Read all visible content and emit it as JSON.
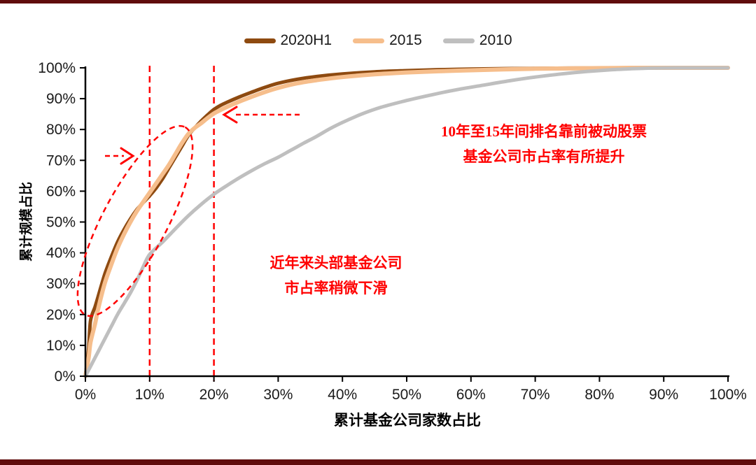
{
  "page": {
    "accent_bar_color": "#600C0C",
    "background": "#FFFFFF"
  },
  "chart_data": {
    "type": "line",
    "title": "",
    "xlabel": "累计基金公司家数占比",
    "ylabel": "累计规模占比",
    "xlim": [
      0,
      100
    ],
    "ylim": [
      0,
      100
    ],
    "grid": false,
    "legend_position": "top-center",
    "x_ticks": [
      "0%",
      "10%",
      "20%",
      "30%",
      "40%",
      "50%",
      "60%",
      "70%",
      "80%",
      "90%",
      "100%"
    ],
    "y_ticks": [
      "0%",
      "10%",
      "20%",
      "30%",
      "40%",
      "50%",
      "60%",
      "70%",
      "80%",
      "90%",
      "100%"
    ],
    "axis_color": "#000000",
    "series": [
      {
        "name": "2020H1",
        "color": "#8E4A10",
        "width": 5,
        "points": [
          [
            0,
            0
          ],
          [
            0.5,
            9
          ],
          [
            0.8,
            18
          ],
          [
            1.5,
            22.5
          ],
          [
            2,
            26
          ],
          [
            3,
            33
          ],
          [
            4,
            38.5
          ],
          [
            5,
            43.5
          ],
          [
            6,
            47.5
          ],
          [
            7,
            51
          ],
          [
            8,
            54
          ],
          [
            9,
            56.3
          ],
          [
            10,
            58.5
          ],
          [
            11,
            61
          ],
          [
            12,
            64
          ],
          [
            13,
            67.5
          ],
          [
            14,
            71
          ],
          [
            15,
            74.5
          ],
          [
            16,
            78
          ],
          [
            17,
            80.5
          ],
          [
            18,
            82.7
          ],
          [
            19,
            84.7
          ],
          [
            20,
            86.5
          ],
          [
            21,
            87.8
          ],
          [
            22,
            88.8
          ],
          [
            24,
            90.6
          ],
          [
            26,
            92.2
          ],
          [
            28,
            93.7
          ],
          [
            30,
            95
          ],
          [
            33,
            96.3
          ],
          [
            36,
            97.2
          ],
          [
            40,
            98
          ],
          [
            45,
            98.7
          ],
          [
            50,
            99.1
          ],
          [
            55,
            99.4
          ],
          [
            60,
            99.6
          ],
          [
            65,
            99.75
          ],
          [
            70,
            99.85
          ],
          [
            75,
            99.9
          ],
          [
            80,
            99.95
          ],
          [
            85,
            100
          ],
          [
            90,
            100
          ],
          [
            95,
            100
          ],
          [
            100,
            100
          ]
        ]
      },
      {
        "name": "2015",
        "color": "#F6BE8C",
        "width": 6,
        "points": [
          [
            0,
            0
          ],
          [
            0.5,
            6
          ],
          [
            0.8,
            11
          ],
          [
            1.5,
            17
          ],
          [
            2,
            22
          ],
          [
            3,
            30
          ],
          [
            4,
            36
          ],
          [
            5,
            41.5
          ],
          [
            6,
            46
          ],
          [
            7,
            50
          ],
          [
            8,
            53.5
          ],
          [
            9,
            56.5
          ],
          [
            10,
            59.5
          ],
          [
            11,
            62.5
          ],
          [
            12,
            65.5
          ],
          [
            13,
            68.5
          ],
          [
            14,
            72
          ],
          [
            15,
            75.5
          ],
          [
            16,
            78.5
          ],
          [
            17,
            80.5
          ],
          [
            18,
            82
          ],
          [
            19,
            83.7
          ],
          [
            20,
            85.2
          ],
          [
            21,
            86.3
          ],
          [
            22,
            87.3
          ],
          [
            24,
            89.1
          ],
          [
            26,
            90.7
          ],
          [
            28,
            92.2
          ],
          [
            30,
            93.5
          ],
          [
            33,
            95
          ],
          [
            36,
            96
          ],
          [
            40,
            97
          ],
          [
            45,
            97.9
          ],
          [
            50,
            98.5
          ],
          [
            55,
            98.9
          ],
          [
            60,
            99.2
          ],
          [
            65,
            99.5
          ],
          [
            70,
            99.7
          ],
          [
            75,
            99.8
          ],
          [
            80,
            99.9
          ],
          [
            85,
            100
          ],
          [
            90,
            100
          ],
          [
            95,
            100
          ],
          [
            100,
            100
          ]
        ]
      },
      {
        "name": "2010",
        "color": "#BFBFBF",
        "width": 5,
        "points": [
          [
            0,
            0
          ],
          [
            1,
            4
          ],
          [
            2,
            8
          ],
          [
            3,
            12
          ],
          [
            4,
            16
          ],
          [
            5,
            20
          ],
          [
            6,
            23.5
          ],
          [
            7,
            27
          ],
          [
            8,
            31
          ],
          [
            9,
            35.5
          ],
          [
            10,
            39.5
          ],
          [
            12,
            43.5
          ],
          [
            14,
            47.8
          ],
          [
            16,
            52
          ],
          [
            18,
            55.7
          ],
          [
            20,
            59
          ],
          [
            22,
            61.8
          ],
          [
            24,
            64.4
          ],
          [
            26,
            66.8
          ],
          [
            28,
            69
          ],
          [
            30,
            71
          ],
          [
            32,
            73.3
          ],
          [
            34,
            75.6
          ],
          [
            36,
            77.8
          ],
          [
            38,
            80.2
          ],
          [
            40,
            82.3
          ],
          [
            43,
            85
          ],
          [
            46,
            87.2
          ],
          [
            50,
            89.4
          ],
          [
            54,
            91.3
          ],
          [
            58,
            93
          ],
          [
            62,
            94.4
          ],
          [
            66,
            95.8
          ],
          [
            70,
            97
          ],
          [
            74,
            98
          ],
          [
            78,
            98.8
          ],
          [
            82,
            99.4
          ],
          [
            85,
            99.7
          ],
          [
            88,
            99.9
          ],
          [
            92,
            100
          ],
          [
            96,
            100
          ],
          [
            100,
            100
          ]
        ]
      }
    ],
    "annotations": {
      "color": "#FF0000",
      "vline_xs": [
        10,
        20
      ],
      "note_top": {
        "line1": "10年至15年间排名靠前被动股票",
        "line2": "基金公司市占率有所提升"
      },
      "note_mid": {
        "line1": "近年来头部基金公司",
        "line2": "市占率稍微下滑"
      },
      "arrows": [
        {
          "direction": "right",
          "points_at": "curves near 10% line at ~70%"
        },
        {
          "direction": "left",
          "points_at": "2020H1/2015 crossing at 20% line ~85%"
        }
      ],
      "ellipse": {
        "meaning": "emphasis on steep head segment of 2020H1/2015 curves"
      }
    }
  }
}
